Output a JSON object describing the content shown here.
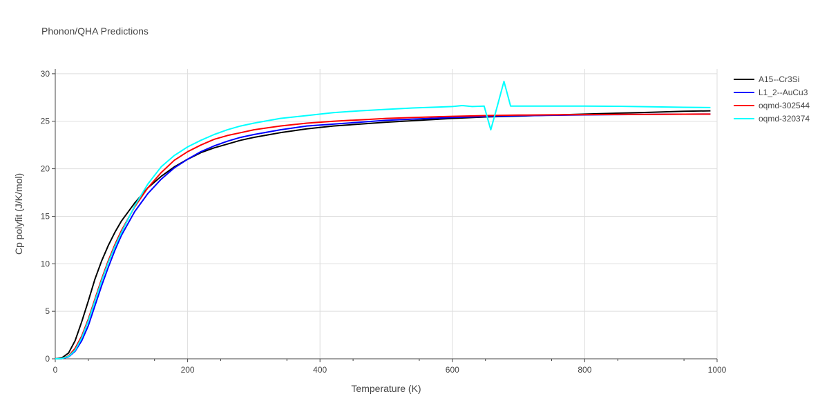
{
  "chart_data": {
    "type": "line",
    "title": "Phonon/QHA Predictions",
    "xlabel": "Temperature (K)",
    "ylabel": "Cp polyfit (J/K/mol)",
    "xlim": [
      0,
      1000
    ],
    "ylim": [
      0,
      30.5
    ],
    "xticks": [
      0,
      200,
      400,
      600,
      800,
      1000
    ],
    "yticks": [
      0,
      5,
      10,
      15,
      20,
      25,
      30
    ],
    "grid": true,
    "legend_position": "top-right",
    "series": [
      {
        "name": "A15--Cr3Si",
        "color": "#000000",
        "x": [
          0,
          10,
          20,
          30,
          40,
          50,
          60,
          70,
          80,
          90,
          100,
          120,
          140,
          160,
          180,
          200,
          220,
          240,
          260,
          280,
          300,
          340,
          380,
          420,
          460,
          500,
          550,
          600,
          650,
          700,
          750,
          800,
          850,
          900,
          950,
          990
        ],
        "y": [
          0,
          0.1,
          0.6,
          1.9,
          3.9,
          6.1,
          8.4,
          10.3,
          11.9,
          13.3,
          14.5,
          16.4,
          18.0,
          19.2,
          20.2,
          21.0,
          21.7,
          22.2,
          22.6,
          23.0,
          23.3,
          23.8,
          24.2,
          24.5,
          24.7,
          24.9,
          25.1,
          25.3,
          25.45,
          25.55,
          25.65,
          25.75,
          25.85,
          25.95,
          26.05,
          26.1
        ]
      },
      {
        "name": "L1_2--AuCu3",
        "color": "#0000ff",
        "x": [
          0,
          10,
          20,
          30,
          40,
          50,
          60,
          70,
          80,
          90,
          100,
          120,
          140,
          160,
          180,
          200,
          220,
          240,
          260,
          280,
          300,
          340,
          380,
          420,
          460,
          500,
          550,
          600,
          650,
          700,
          750,
          800,
          850,
          900,
          950,
          990
        ],
        "y": [
          0,
          0.02,
          0.2,
          0.8,
          1.9,
          3.5,
          5.6,
          7.7,
          9.6,
          11.4,
          13.0,
          15.5,
          17.4,
          18.9,
          20.1,
          21.0,
          21.8,
          22.4,
          22.9,
          23.3,
          23.6,
          24.1,
          24.5,
          24.7,
          24.9,
          25.1,
          25.25,
          25.4,
          25.5,
          25.58,
          25.63,
          25.67,
          25.7,
          25.72,
          25.74,
          25.75
        ]
      },
      {
        "name": "oqmd-302544",
        "color": "#ff0000",
        "x": [
          0,
          10,
          20,
          30,
          40,
          50,
          60,
          70,
          80,
          90,
          100,
          120,
          140,
          160,
          180,
          200,
          220,
          240,
          260,
          280,
          300,
          340,
          380,
          420,
          460,
          500,
          550,
          600,
          650,
          700,
          750,
          800,
          850,
          900,
          950,
          990
        ],
        "y": [
          0,
          0.03,
          0.3,
          1.1,
          2.4,
          4.2,
          6.3,
          8.4,
          10.3,
          12.0,
          13.5,
          16.0,
          18.0,
          19.6,
          20.9,
          21.8,
          22.5,
          23.1,
          23.5,
          23.8,
          24.1,
          24.5,
          24.8,
          25.0,
          25.15,
          25.3,
          25.42,
          25.52,
          25.6,
          25.65,
          25.68,
          25.7,
          25.72,
          25.73,
          25.74,
          25.75
        ]
      },
      {
        "name": "oqmd-320374",
        "color": "#00ffff",
        "x": [
          0,
          10,
          20,
          30,
          40,
          50,
          60,
          70,
          80,
          90,
          100,
          120,
          140,
          160,
          180,
          200,
          220,
          240,
          260,
          280,
          300,
          340,
          380,
          420,
          460,
          500,
          540,
          580,
          600,
          615,
          630,
          648,
          658,
          668,
          678,
          688,
          700,
          750,
          800,
          850,
          900,
          950,
          990
        ],
        "y": [
          0,
          0.03,
          0.25,
          0.9,
          2.2,
          4.0,
          6.1,
          8.2,
          10.1,
          11.8,
          13.3,
          16.1,
          18.4,
          20.2,
          21.4,
          22.3,
          23.0,
          23.6,
          24.1,
          24.5,
          24.8,
          25.3,
          25.6,
          25.9,
          26.1,
          26.25,
          26.4,
          26.5,
          26.55,
          26.65,
          26.55,
          26.6,
          24.1,
          26.6,
          29.2,
          26.6,
          26.6,
          26.6,
          26.6,
          26.58,
          26.52,
          26.47,
          26.44
        ]
      }
    ]
  }
}
